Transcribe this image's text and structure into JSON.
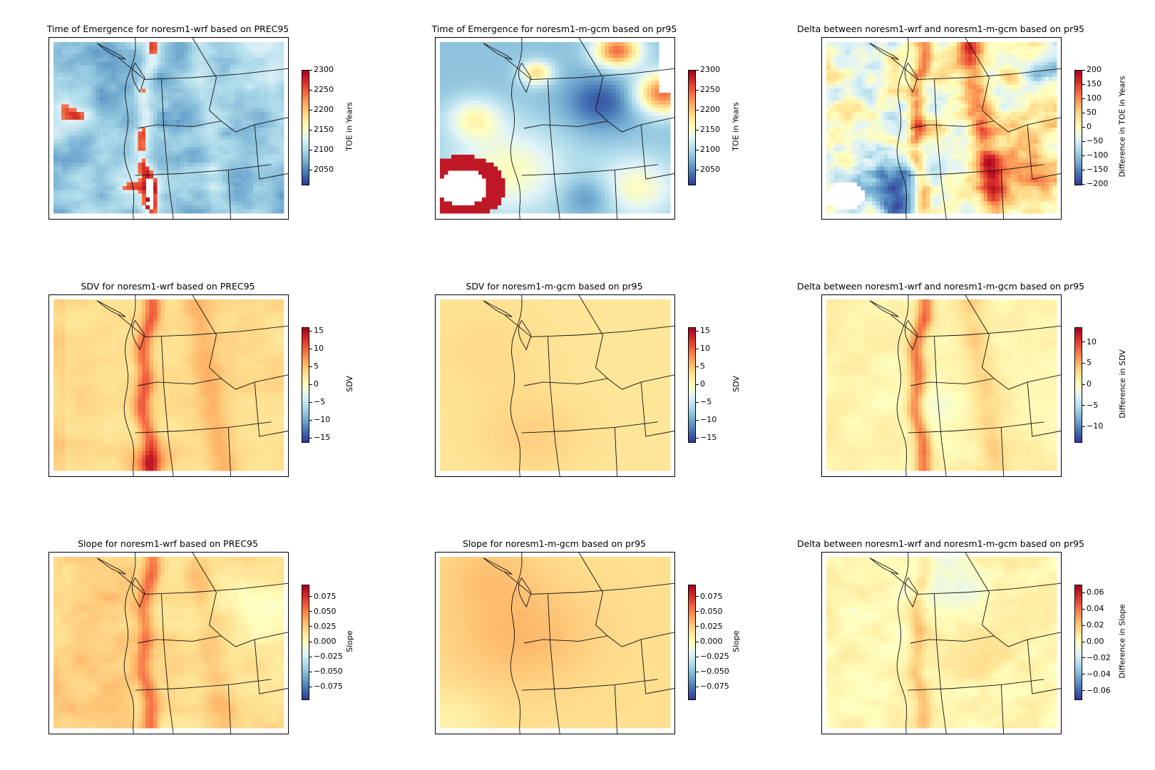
{
  "figure": {
    "panels": [
      {
        "id": "toe-wrf",
        "title": "Time of Emergence for noresm1-wrf based on PREC95",
        "field": "toe-patchy",
        "colorbar": {
          "label": "TOE in Years",
          "ticks": [
            "2300",
            "2250",
            "2200",
            "2150",
            "2100",
            "2050"
          ],
          "range": [
            2015,
            2300
          ]
        }
      },
      {
        "id": "toe-gcm",
        "title": "Time of Emergence for noresm1-m-gcm based on pr95",
        "field": "toe-smooth",
        "colorbar": {
          "label": "TOE in Years",
          "ticks": [
            "2300",
            "2250",
            "2200",
            "2150",
            "2100",
            "2050"
          ],
          "range": [
            2015,
            2300
          ]
        }
      },
      {
        "id": "toe-delta",
        "title": "Delta between noresm1-wrf and noresm1-m-gcm based on pr95",
        "field": "delta-toe",
        "colorbar": {
          "label": "Difference in TOE in Years",
          "ticks": [
            "200",
            "150",
            "100",
            "50",
            "0",
            "−50",
            "−100",
            "−150",
            "−200"
          ],
          "range": [
            -200,
            200
          ]
        }
      },
      {
        "id": "sdv-wrf",
        "title": "SDV for noresm1-wrf based on PREC95",
        "field": "sdv-fine",
        "colorbar": {
          "label": "SDV",
          "ticks": [
            "15",
            "10",
            "5",
            "0",
            "−5",
            "−10",
            "−15"
          ],
          "range": [
            -16,
            16
          ]
        }
      },
      {
        "id": "sdv-gcm",
        "title": "SDV for noresm1-m-gcm based on pr95",
        "field": "sdv-smooth",
        "colorbar": {
          "label": "SDV",
          "ticks": [
            "15",
            "10",
            "5",
            "0",
            "−5",
            "−10",
            "−15"
          ],
          "range": [
            -16,
            16
          ]
        }
      },
      {
        "id": "sdv-delta",
        "title": "Delta between noresm1-wrf and noresm1-m-gcm based on pr95",
        "field": "sdv-delta",
        "colorbar": {
          "label": "Difference in SDV",
          "ticks": [
            "10",
            "5",
            "0",
            "−5",
            "−10"
          ],
          "range": [
            -13.5,
            13.5
          ]
        }
      },
      {
        "id": "slope-wrf",
        "title": "Slope for noresm1-wrf based on PREC95",
        "field": "slope-fine",
        "colorbar": {
          "label": "Slope",
          "ticks": [
            "0.075",
            "0.050",
            "0.025",
            "0.000",
            "−0.025",
            "−0.050",
            "−0.075"
          ],
          "range": [
            -0.095,
            0.095
          ]
        }
      },
      {
        "id": "slope-gcm",
        "title": "Slope for noresm1-m-gcm based on pr95",
        "field": "slope-smooth",
        "colorbar": {
          "label": "Slope",
          "ticks": [
            "0.075",
            "0.050",
            "0.025",
            "0.000",
            "−0.025",
            "−0.050",
            "−0.075"
          ],
          "range": [
            -0.095,
            0.095
          ]
        }
      },
      {
        "id": "slope-delta",
        "title": "Delta between noresm1-wrf and noresm1-m-gcm based on pr95",
        "field": "slope-delta",
        "colorbar": {
          "label": "Difference in Slope",
          "ticks": [
            "0.06",
            "0.04",
            "0.02",
            "0.00",
            "−0.02",
            "−0.04",
            "−0.06"
          ],
          "range": [
            -0.07,
            0.07
          ]
        }
      }
    ],
    "colormap": "RdYlBu_r"
  }
}
